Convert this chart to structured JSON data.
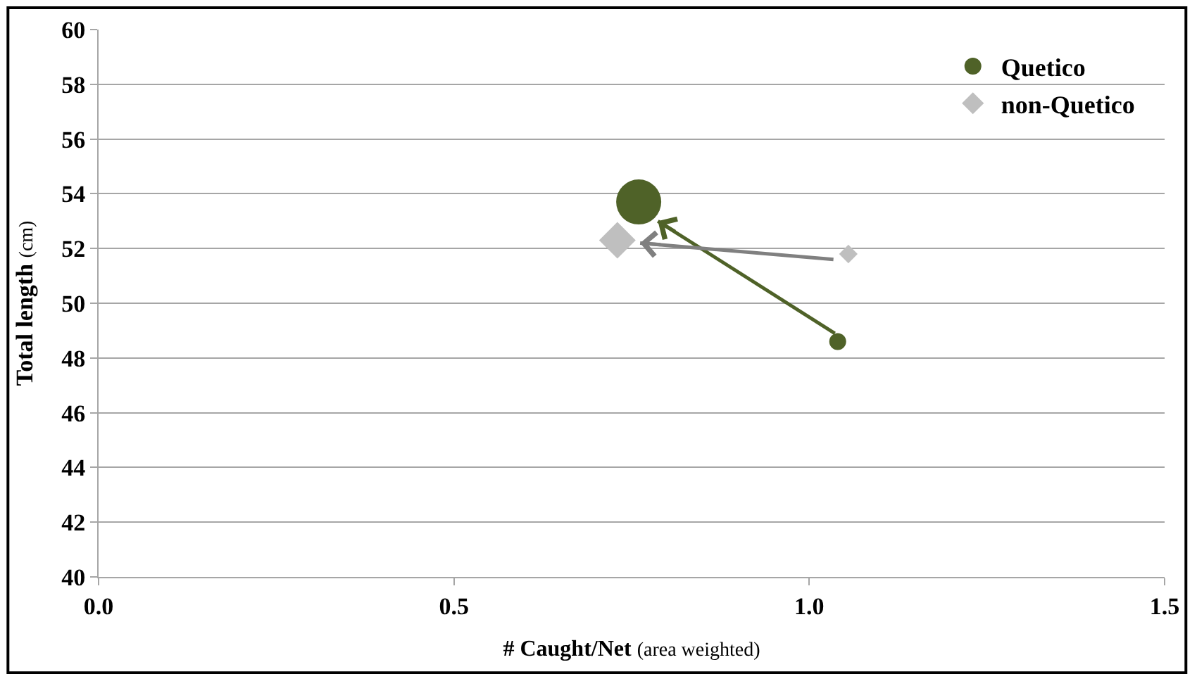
{
  "chart_data": {
    "type": "bubble",
    "xlabel": "# Caught/Net (area weighted)",
    "ylabel": "Total length (cm)",
    "xlim": [
      0,
      1.5
    ],
    "xticks": [
      {
        "value": 0,
        "label": "0.0"
      },
      {
        "value": 0.5,
        "label": "0.5"
      },
      {
        "value": 1,
        "label": "1.0"
      },
      {
        "value": 1.5,
        "label": "1.5"
      }
    ],
    "ylim": [
      40,
      60
    ],
    "yticks": [
      40,
      42,
      44,
      46,
      48,
      50,
      52,
      54,
      56,
      58,
      60
    ],
    "grid": "y",
    "legend": "top right",
    "series": [
      {
        "type": "line",
        "color": "#4f6228",
        "marker": "none",
        "line_style": "solid",
        "x": [
          1.036,
          0.787
        ],
        "values": [
          48.9,
          53.0
        ]
      },
      {
        "type": "line",
        "color": "#808080",
        "marker": "none",
        "line_style": "solid",
        "x": [
          1.034,
          0.762
        ],
        "values": [
          51.6,
          52.2
        ]
      },
      {
        "name": "Quetico",
        "color": "#4f6228",
        "marker": "circle",
        "x": [
          1.04,
          0.76
        ],
        "values": [
          48.6,
          53.7
        ],
        "sizes": [
          0.14,
          1
        ]
      },
      {
        "name": "non-Quetico",
        "color": "#bfbfbf",
        "marker": "diamond",
        "x": [
          1.055,
          0.73
        ],
        "values": [
          51.8,
          52.3
        ],
        "sizes": [
          0.1,
          0.39
        ]
      }
    ]
  }
}
